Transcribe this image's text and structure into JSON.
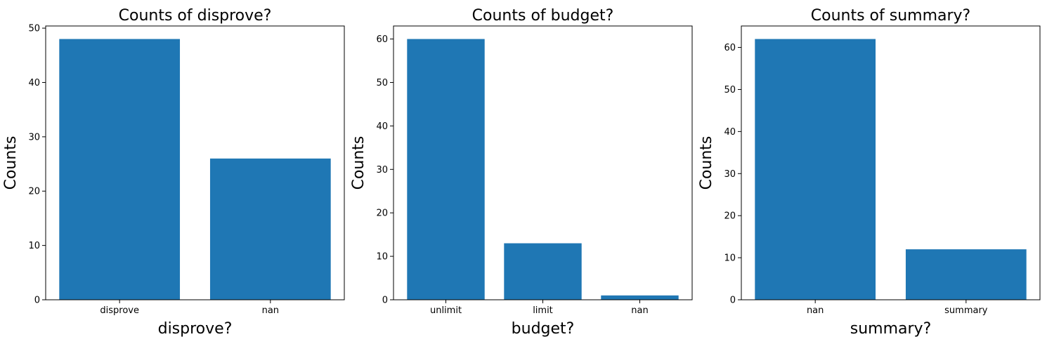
{
  "chart_data": [
    {
      "type": "bar",
      "title": "Counts of disprove?",
      "xlabel": "disprove?",
      "ylabel": "Counts",
      "categories": [
        "disprove",
        "nan"
      ],
      "values": [
        48,
        26
      ],
      "yticks": [
        0,
        10,
        20,
        30,
        40,
        50
      ],
      "ylim": [
        0,
        50.4
      ],
      "color": "#1f77b4",
      "grid": false
    },
    {
      "type": "bar",
      "title": "Counts of budget?",
      "xlabel": "budget?",
      "ylabel": "Counts",
      "categories": [
        "unlimit",
        "limit",
        "nan"
      ],
      "values": [
        60,
        13,
        1
      ],
      "yticks": [
        0,
        10,
        20,
        30,
        40,
        50,
        60
      ],
      "ylim": [
        0,
        63
      ],
      "color": "#1f77b4",
      "grid": false
    },
    {
      "type": "bar",
      "title": "Counts of summary?",
      "xlabel": "summary?",
      "ylabel": "Counts",
      "categories": [
        "nan",
        "summary"
      ],
      "values": [
        62,
        12
      ],
      "yticks": [
        0,
        10,
        20,
        30,
        40,
        50,
        60
      ],
      "ylim": [
        0,
        65.1
      ],
      "color": "#1f77b4",
      "grid": false
    }
  ]
}
